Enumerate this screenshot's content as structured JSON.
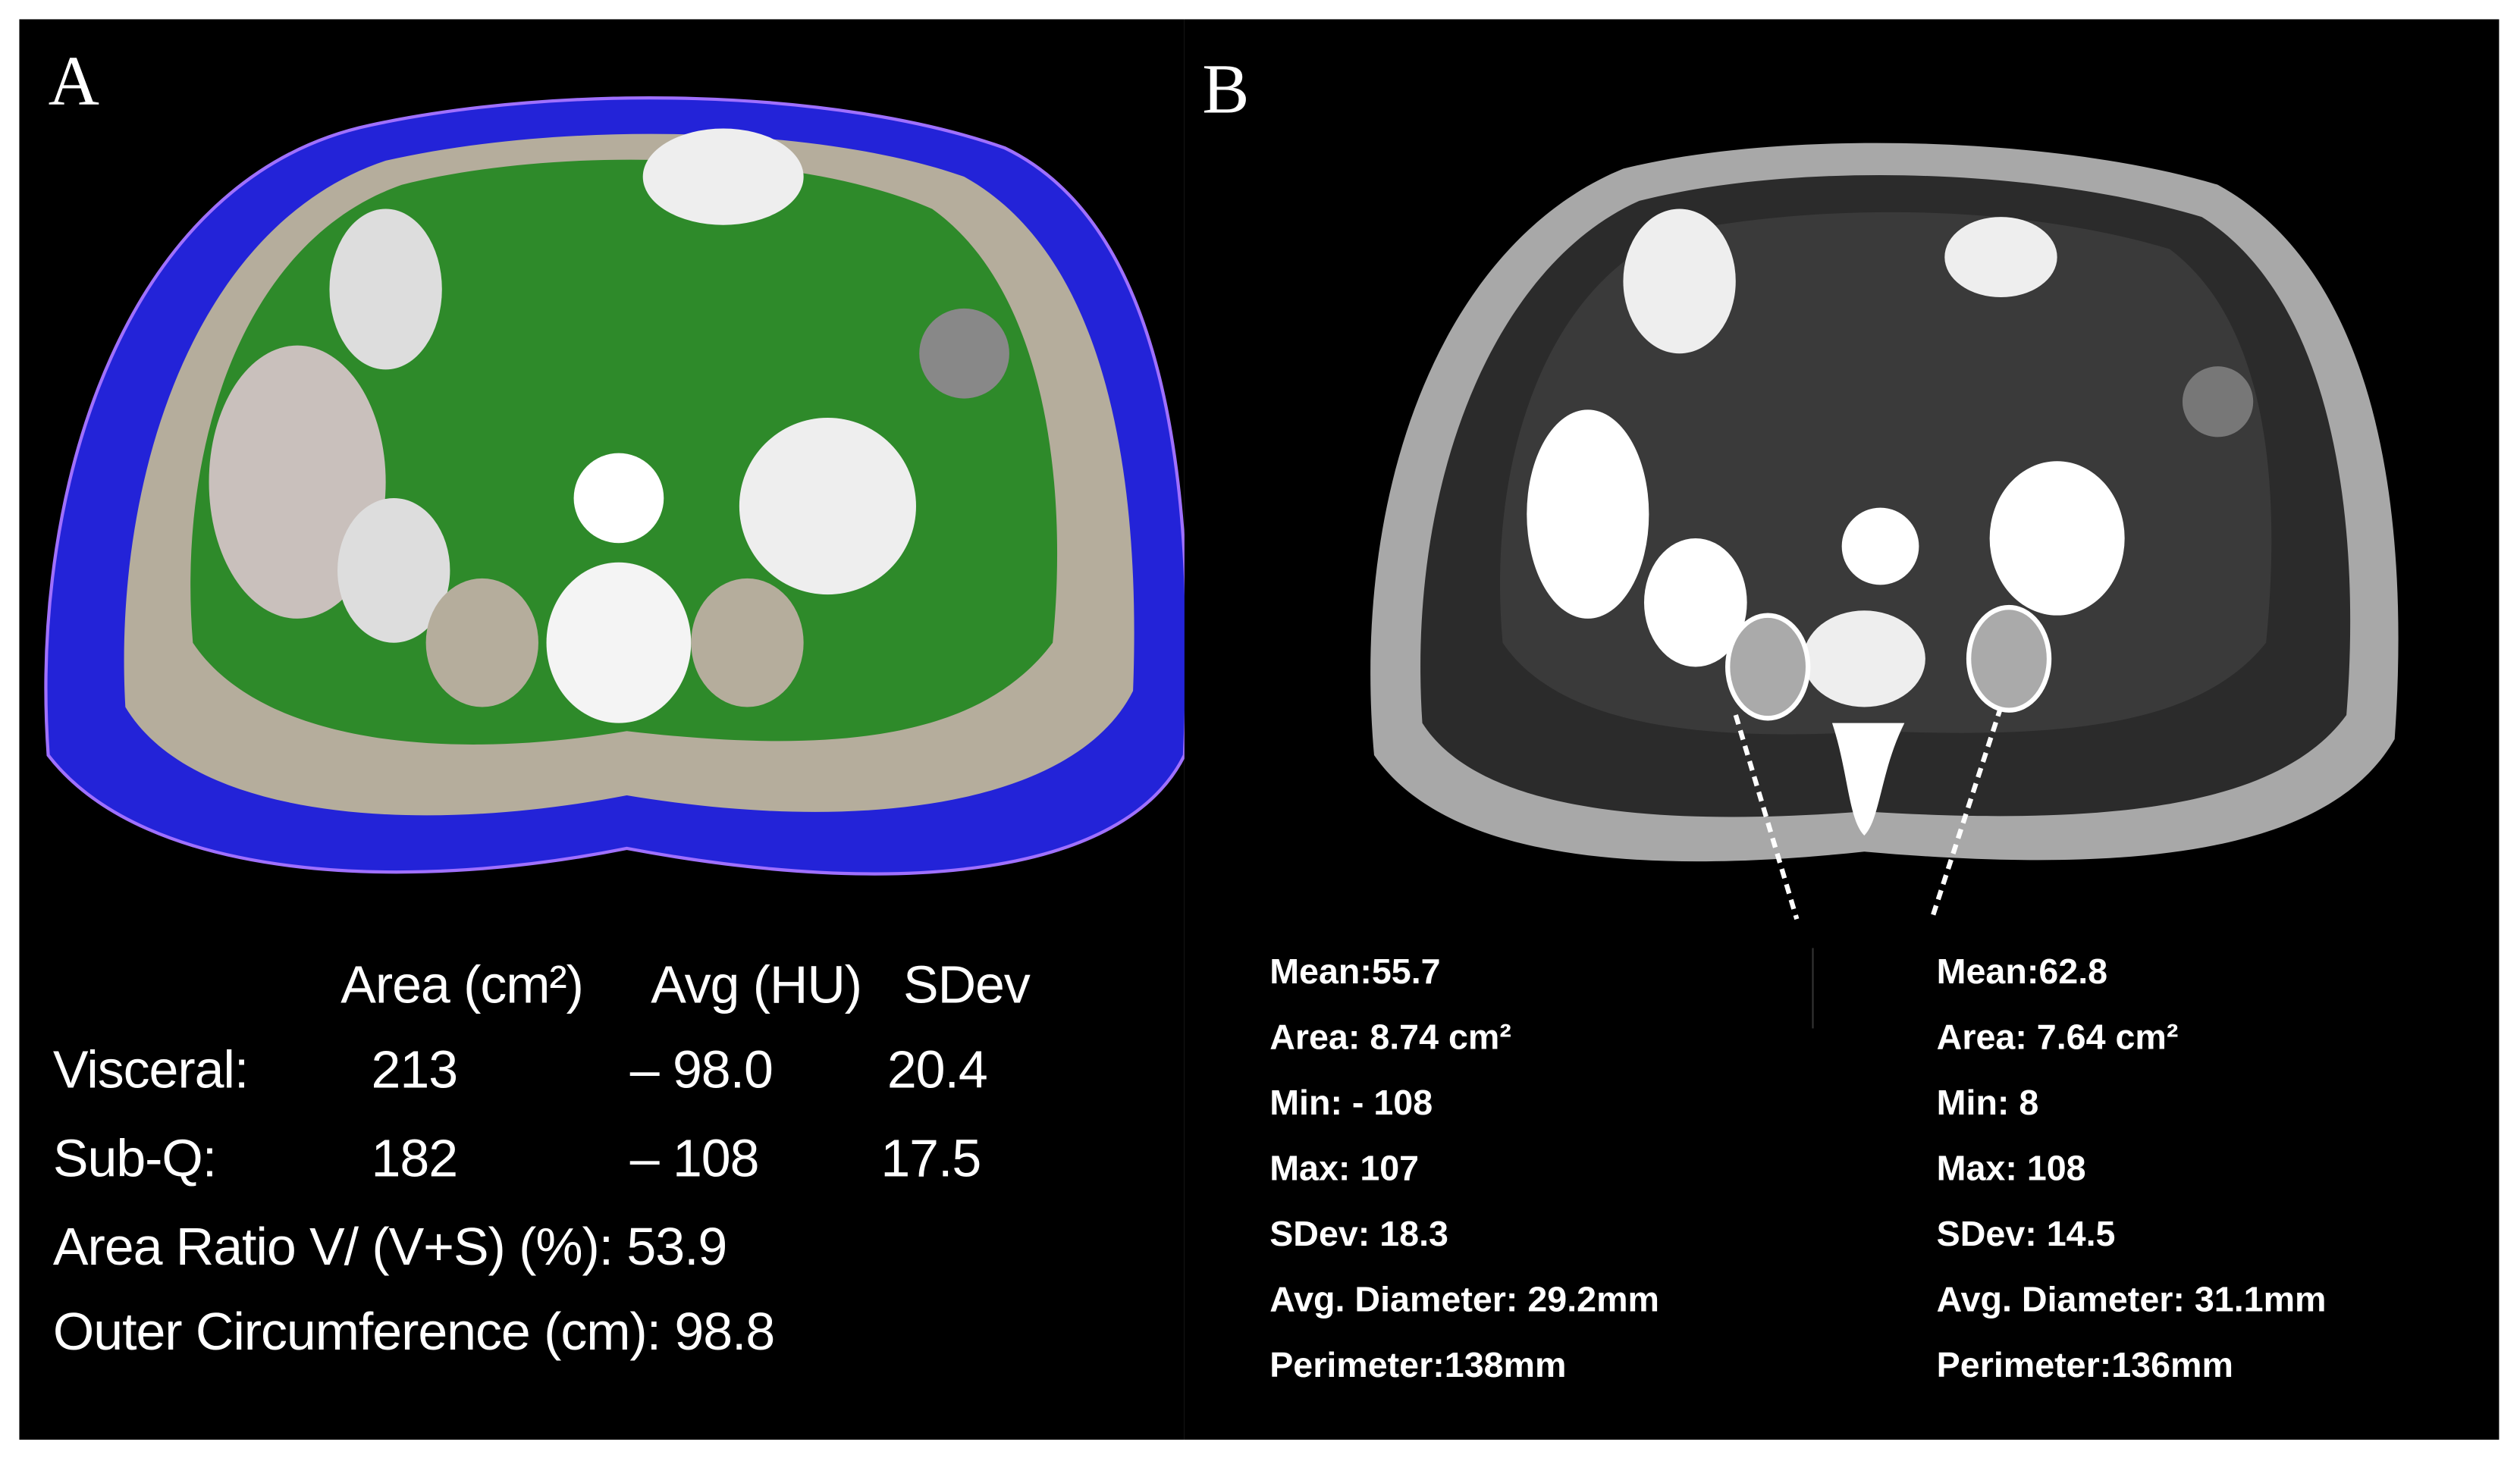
{
  "panel_a": {
    "label": "A",
    "table": {
      "headers": [
        "Area (cm²)",
        "Avg (HU)",
        "SDev"
      ],
      "rows": [
        {
          "label": "Visceral:",
          "cells": [
            "213",
            "– 98.0",
            "20.4"
          ]
        },
        {
          "label": "Sub-Q:",
          "cells": [
            "182",
            "– 108",
            "17.5"
          ]
        }
      ]
    },
    "area_ratio": "Area Ratio V/ (V+S) (%): 53.9",
    "outer_circumference": "Outer Circumference (cm): 98.8"
  },
  "panel_b": {
    "label": "B",
    "left_roi": [
      "Mean:55.7",
      "Area: 8.74 cm²",
      "Min: - 108",
      "Max: 107",
      "SDev: 18.3",
      "Avg. Diameter: 29.2mm",
      "Perimeter:138mm"
    ],
    "right_roi": [
      "Mean:62.8",
      "Area: 7.64 cm²",
      "Min: 8",
      "Max: 108",
      "SDev: 14.5",
      "Avg. Diameter: 31.1mm",
      "Perimeter:136mm"
    ]
  }
}
